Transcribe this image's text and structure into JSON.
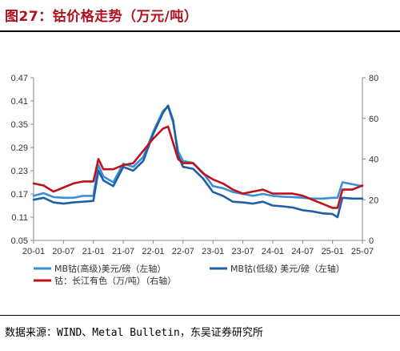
{
  "figure": {
    "title": "图27：钴价格走势（万元/吨）",
    "source": "数据来源：WIND、Metal Bulletin，东吴证券研究所"
  },
  "chart_data": {
    "type": "line",
    "x_ticks": [
      "20-01",
      "20-07",
      "21-01",
      "21-07",
      "22-01",
      "22-07",
      "23-01",
      "23-07",
      "24-01",
      "24-07",
      "25-01",
      "25-07"
    ],
    "y_left": {
      "min": 0.05,
      "max": 0.47,
      "ticks": [
        "0.47",
        "0.41",
        "0.35",
        "0.29",
        "0.23",
        "0.17",
        "0.11",
        "0.05"
      ]
    },
    "y_right": {
      "min": 0,
      "max": 80,
      "ticks": [
        "80",
        "60",
        "40",
        "20",
        "0"
      ]
    },
    "grid": false,
    "legend_position": "bottom",
    "series": [
      {
        "name": "MB钴(高级)美元/磅（左轴）",
        "axis": "left",
        "color": "#3a8fd8",
        "x": [
          "20-01",
          "20-03",
          "20-05",
          "20-07",
          "20-09",
          "20-11",
          "21-01",
          "21-02",
          "21-03",
          "21-05",
          "21-07",
          "21-09",
          "21-11",
          "22-01",
          "22-03",
          "22-04",
          "22-05",
          "22-06",
          "22-07",
          "22-09",
          "22-11",
          "23-01",
          "23-03",
          "23-05",
          "23-07",
          "23-09",
          "23-11",
          "24-01",
          "24-03",
          "24-05",
          "24-07",
          "24-09",
          "24-11",
          "25-01",
          "25-02",
          "25-03",
          "25-05",
          "25-07"
        ],
        "values": [
          0.165,
          0.172,
          0.162,
          0.16,
          0.16,
          0.165,
          0.165,
          0.245,
          0.215,
          0.2,
          0.248,
          0.24,
          0.265,
          0.33,
          0.385,
          0.395,
          0.355,
          0.28,
          0.255,
          0.25,
          0.225,
          0.19,
          0.185,
          0.175,
          0.17,
          0.165,
          0.17,
          0.165,
          0.163,
          0.162,
          0.16,
          0.158,
          0.158,
          0.16,
          0.16,
          0.2,
          0.195,
          0.19
        ]
      },
      {
        "name": "MB钴(低级) 美元/磅（左轴）",
        "axis": "left",
        "color": "#1f5fa6",
        "x": [
          "20-01",
          "20-03",
          "20-05",
          "20-07",
          "20-09",
          "20-11",
          "21-01",
          "21-02",
          "21-03",
          "21-05",
          "21-07",
          "21-09",
          "21-11",
          "22-01",
          "22-03",
          "22-04",
          "22-05",
          "22-06",
          "22-07",
          "22-09",
          "22-11",
          "23-01",
          "23-03",
          "23-05",
          "23-07",
          "23-09",
          "23-11",
          "24-01",
          "24-03",
          "24-05",
          "24-07",
          "24-09",
          "24-11",
          "25-01",
          "25-02",
          "25-03",
          "25-05",
          "25-07"
        ],
        "values": [
          0.155,
          0.16,
          0.148,
          0.145,
          0.148,
          0.15,
          0.152,
          0.23,
          0.205,
          0.19,
          0.24,
          0.23,
          0.255,
          0.325,
          0.38,
          0.398,
          0.36,
          0.27,
          0.24,
          0.235,
          0.21,
          0.175,
          0.165,
          0.15,
          0.148,
          0.145,
          0.15,
          0.14,
          0.138,
          0.135,
          0.128,
          0.125,
          0.12,
          0.118,
          0.11,
          0.16,
          0.158,
          0.158
        ]
      },
      {
        "name": "钴：长江有色（万/吨）（右轴）",
        "axis": "right",
        "color": "#c0101a",
        "x": [
          "20-01",
          "20-03",
          "20-05",
          "20-07",
          "20-09",
          "20-11",
          "21-01",
          "21-02",
          "21-03",
          "21-05",
          "21-07",
          "21-09",
          "21-11",
          "22-01",
          "22-03",
          "22-04",
          "22-05",
          "22-06",
          "22-07",
          "22-09",
          "22-11",
          "23-01",
          "23-03",
          "23-05",
          "23-07",
          "23-09",
          "23-11",
          "24-01",
          "24-03",
          "24-05",
          "24-07",
          "24-09",
          "24-11",
          "25-01",
          "25-02",
          "25-03",
          "25-05",
          "25-07"
        ],
        "values": [
          28,
          27,
          24,
          26,
          28,
          29,
          29,
          40,
          35,
          35,
          37,
          38,
          44,
          50,
          55,
          56,
          48,
          40,
          38,
          38,
          33,
          30,
          28,
          25,
          23,
          24,
          25,
          23,
          23,
          23,
          22,
          20,
          18,
          16,
          16,
          25,
          25,
          27
        ]
      }
    ]
  }
}
